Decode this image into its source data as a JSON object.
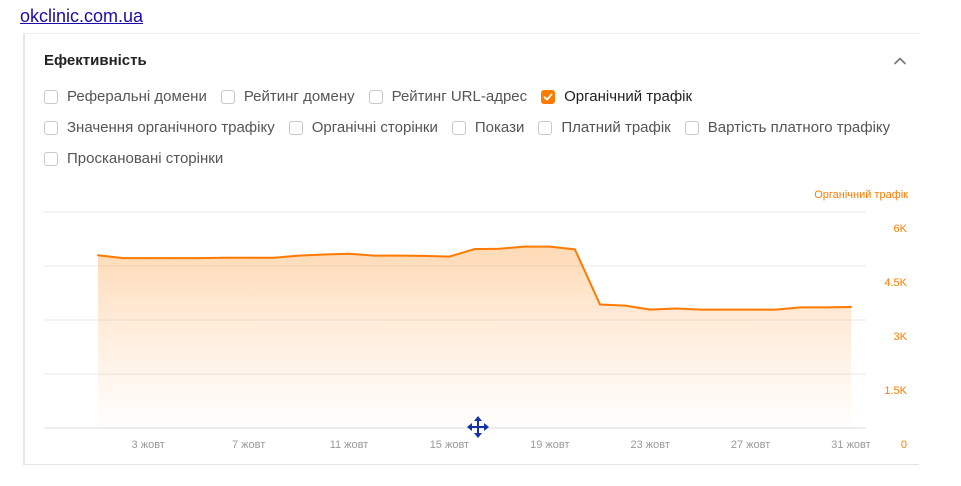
{
  "header": {
    "site": "okclinic.com.ua"
  },
  "panel": {
    "title": "Ефективність",
    "filters": [
      {
        "label": "Реферальні домени",
        "checked": false
      },
      {
        "label": "Рейтинг домену",
        "checked": false
      },
      {
        "label": "Рейтинг URL-адрес",
        "checked": false
      },
      {
        "label": "Органічний трафік",
        "checked": true
      },
      {
        "label": "Значення органічного трафіку",
        "checked": false
      },
      {
        "label": "Органічні сторінки",
        "checked": false
      },
      {
        "label": "Покази",
        "checked": false
      },
      {
        "label": "Платний трафік",
        "checked": false
      },
      {
        "label": "Вартість платного трафіку",
        "checked": false
      },
      {
        "label": "Проскановані сторінки",
        "checked": false
      }
    ]
  },
  "colors": {
    "accent": "#ff7a00",
    "grid": "#e9e9e9",
    "tick": "#999999"
  },
  "chart_data": {
    "type": "area",
    "legend": "Органічний трафік",
    "legend_placement": "top-right",
    "grid": true,
    "y_axis_side": "right",
    "ylim": [
      0,
      6000
    ],
    "yticks": [
      0,
      1500,
      3000,
      4500,
      6000
    ],
    "ytick_labels": [
      "0",
      "1.5K",
      "3K",
      "4.5K",
      "6K"
    ],
    "x_range": [
      "1 жовт",
      "31 жовт"
    ],
    "xtick_labels": [
      "3 жовт",
      "7 жовт",
      "11 жовт",
      "15 жовт",
      "19 жовт",
      "23 жовт",
      "27 жовт",
      "31 жовт"
    ],
    "series": [
      {
        "name": "Органічний трафік",
        "x": [
          "1 жовт",
          "2 жовт",
          "3 жовт",
          "4 жовт",
          "5 жовт",
          "6 жовт",
          "7 жовт",
          "8 жовт",
          "9 жовт",
          "10 жовт",
          "11 жовт",
          "12 жовт",
          "13 жовт",
          "14 жовт",
          "15 жовт",
          "16 жовт",
          "17 жовт",
          "18 жовт",
          "19 жовт",
          "20 жовт",
          "21 жовт",
          "22 жовт",
          "23 жовт",
          "24 жовт",
          "25 жовт",
          "26 жовт",
          "27 жовт",
          "28 жовт",
          "29 жовт",
          "30 жовт",
          "31 жовт"
        ],
        "values": [
          4800,
          4720,
          4720,
          4720,
          4720,
          4730,
          4730,
          4730,
          4790,
          4820,
          4840,
          4790,
          4790,
          4780,
          4760,
          4970,
          4980,
          5040,
          5040,
          4960,
          3430,
          3400,
          3290,
          3320,
          3290,
          3290,
          3290,
          3290,
          3350,
          3350,
          3360
        ]
      }
    ]
  }
}
